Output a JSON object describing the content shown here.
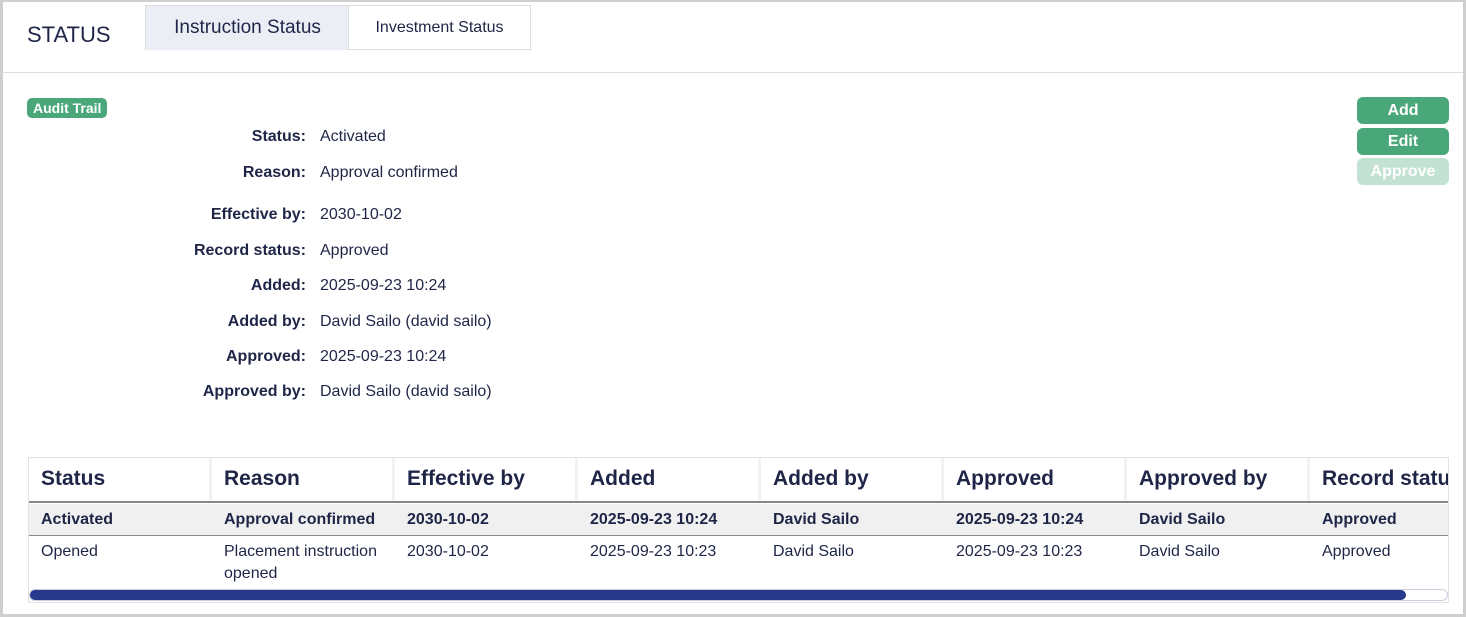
{
  "header": {
    "title": "STATUS",
    "tabs": [
      {
        "label": "Instruction Status",
        "active": true
      },
      {
        "label": "Investment Status",
        "active": false
      }
    ]
  },
  "audit_trail_label": "Audit Trail",
  "actions": {
    "add": "Add",
    "edit": "Edit",
    "approve": "Approve",
    "approve_disabled": true
  },
  "details": [
    {
      "label": "Status:",
      "value": "Activated"
    },
    {
      "label": "Reason:",
      "value": "Approval confirmed"
    },
    {
      "label": "Effective by:",
      "value": "2030-10-02"
    },
    {
      "label": "Record status:",
      "value": "Approved"
    },
    {
      "label": "Added:",
      "value": "2025-09-23 10:24"
    },
    {
      "label": "Added by:",
      "value": "David Sailo (david sailo)"
    },
    {
      "label": "Approved:",
      "value": "2025-09-23 10:24"
    },
    {
      "label": "Approved by:",
      "value": "David Sailo (david sailo)"
    }
  ],
  "table": {
    "columns": [
      "Status",
      "Reason",
      "Effective by",
      "Added",
      "Added by",
      "Approved",
      "Approved by",
      "Record status"
    ],
    "rows": [
      [
        "Activated",
        "Approval confirmed",
        "2030-10-02",
        "2025-09-23 10:24",
        "David Sailo",
        "2025-09-23 10:24",
        "David Sailo",
        "Approved"
      ],
      [
        "Opened",
        "Placement instruction opened",
        "2030-10-02",
        "2025-09-23 10:23",
        "David Sailo",
        "2025-09-23 10:23",
        "David Sailo",
        "Approved"
      ]
    ],
    "scroll_position_percent": 97
  },
  "colors": {
    "accent": "#4aa77a",
    "text": "#1f2547",
    "scrollbar": "#27398a"
  }
}
